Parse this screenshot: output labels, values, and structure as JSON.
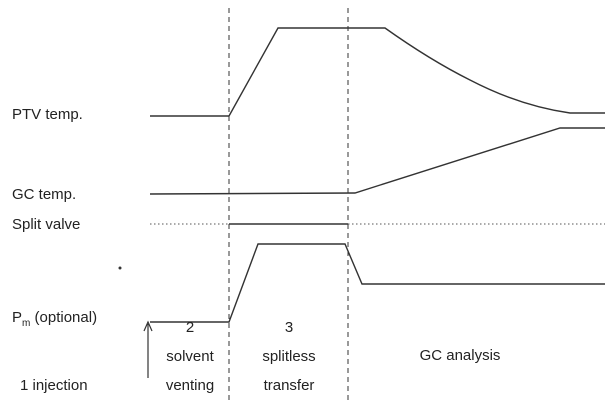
{
  "labels": {
    "ptv_temp": "PTV temp.",
    "gc_temp": "GC temp.",
    "split_valve": "Split valve",
    "p_m": {
      "symbol": "P",
      "subscript": "m",
      "suffix": " (optional)"
    }
  },
  "phases": [
    {
      "lines": [
        "1 injection"
      ]
    },
    {
      "lines": [
        "2",
        "solvent",
        "venting"
      ]
    },
    {
      "lines": [
        "3",
        "splitless",
        "transfer"
      ]
    },
    {
      "lines": [
        "GC analysis"
      ]
    }
  ]
}
